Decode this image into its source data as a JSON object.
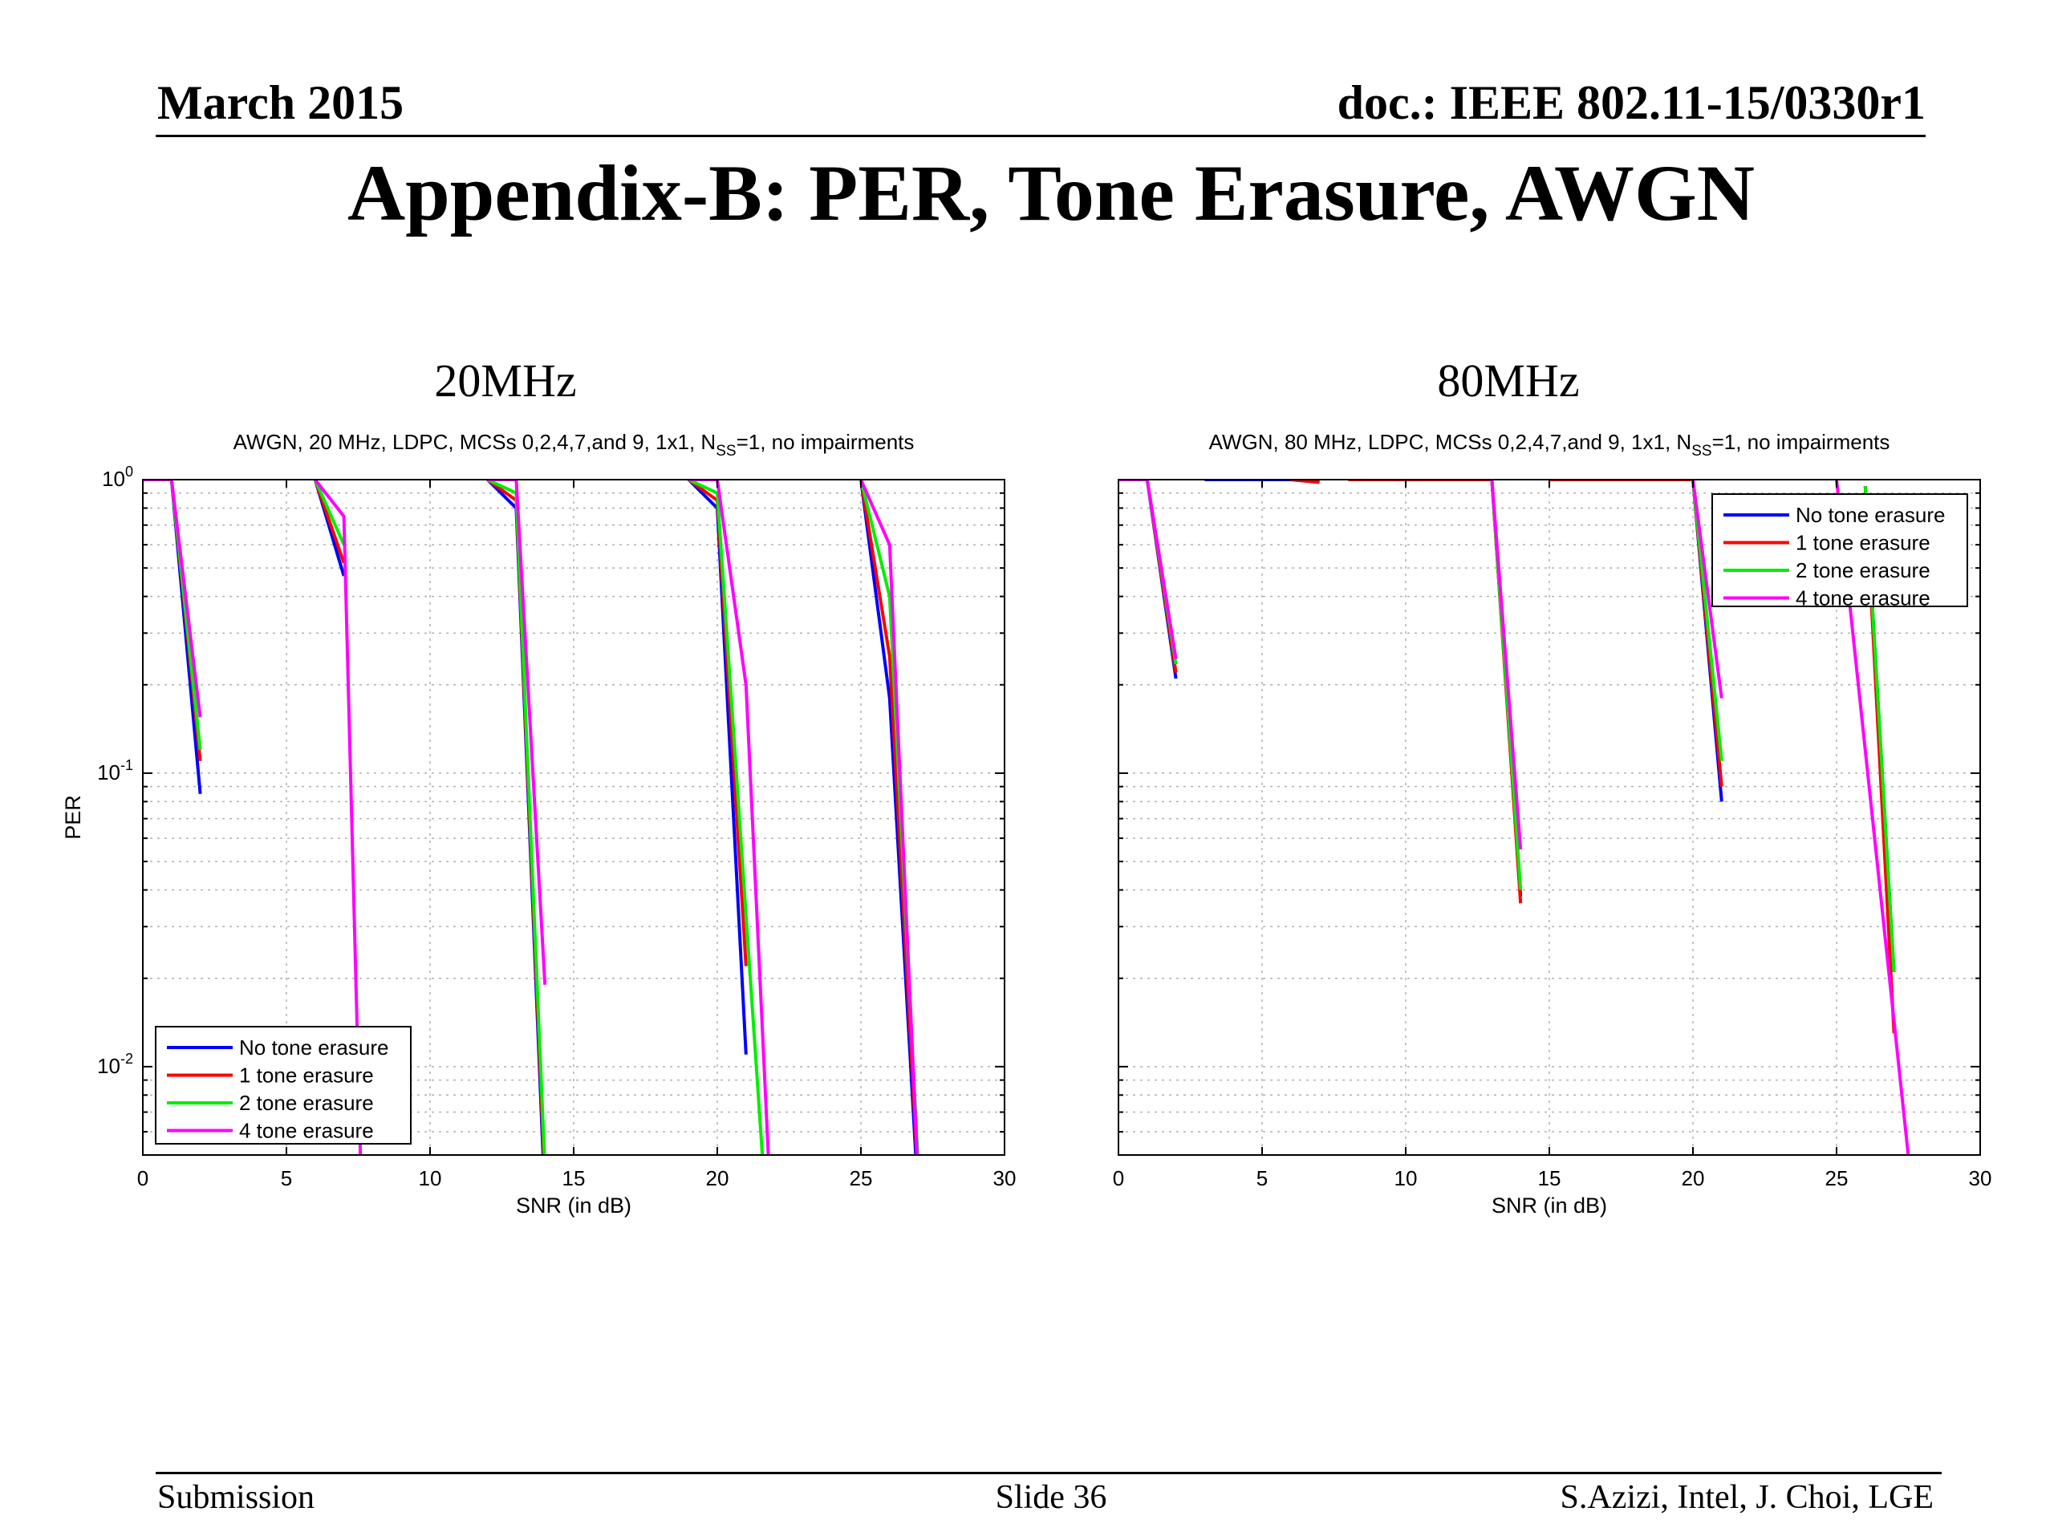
{
  "header": {
    "date": "March 2015",
    "doc": "doc.: IEEE 802.11-15/0330r1",
    "title": "Appendix-B: PER, Tone Erasure, AWGN"
  },
  "footer": {
    "left": "Submission",
    "middle": "Slide 36",
    "right": "S.Azizi, Intel, J. Choi, LGE"
  },
  "panels": [
    {
      "caption": "20MHz"
    },
    {
      "caption": "80MHz"
    }
  ],
  "series_colors": {
    "No tone erasure": "#0000ff",
    "1 tone erasure": "#ff0000",
    "2 tone erasure": "#00ee00",
    "4 tone erasure": "#ff00ff"
  },
  "chart_data": [
    {
      "type": "line",
      "title": {
        "pre": "AWGN, 20 MHz, LDPC, MCSs 0,2,4,7,and 9, 1x1, N",
        "sub": "SS",
        "post": "=1, no impairments"
      },
      "xlabel": "SNR (in dB)",
      "ylabel": "PER",
      "xlim": [
        0,
        30
      ],
      "ylim": [
        0.005,
        1
      ],
      "yscale": "log",
      "xticks": [
        0,
        5,
        10,
        15,
        20,
        25,
        30
      ],
      "yticks": [
        {
          "value": 1,
          "base": "10",
          "exp": "0"
        },
        {
          "value": 0.1,
          "base": "10",
          "exp": "-1"
        },
        {
          "value": 0.01,
          "base": "10",
          "exp": "-2"
        }
      ],
      "grid": true,
      "legend_position": "bottom-left",
      "series": [
        {
          "name": "No tone erasure",
          "segments": [
            [
              [
                0,
                1
              ],
              [
                1,
                1
              ],
              [
                2,
                0.085
              ]
            ],
            [
              [
                6,
                1
              ],
              [
                7,
                0.47
              ]
            ],
            [
              [
                12,
                1
              ],
              [
                13,
                0.8
              ],
              [
                14,
                0.0035
              ]
            ],
            [
              [
                19,
                1
              ],
              [
                20,
                0.8
              ],
              [
                21,
                0.011
              ]
            ],
            [
              [
                25,
                1
              ],
              [
                26,
                0.18
              ],
              [
                27,
                0.0035
              ]
            ]
          ]
        },
        {
          "name": "1 tone erasure",
          "segments": [
            [
              [
                0,
                1
              ],
              [
                1,
                1
              ],
              [
                2,
                0.11
              ]
            ],
            [
              [
                6,
                1
              ],
              [
                7,
                0.52
              ]
            ],
            [
              [
                12,
                1
              ],
              [
                13,
                0.85
              ],
              [
                14,
                0.004
              ]
            ],
            [
              [
                19,
                1
              ],
              [
                20,
                0.85
              ],
              [
                21,
                0.022
              ]
            ],
            [
              [
                25,
                1
              ],
              [
                26,
                0.25
              ],
              [
                27,
                0.004
              ]
            ]
          ]
        },
        {
          "name": "2 tone erasure",
          "segments": [
            [
              [
                0,
                1
              ],
              [
                1,
                1
              ],
              [
                2,
                0.12
              ]
            ],
            [
              [
                6,
                1
              ],
              [
                7,
                0.6
              ]
            ],
            [
              [
                12,
                1
              ],
              [
                13,
                0.9
              ],
              [
                14,
                0.0045
              ]
            ],
            [
              [
                19,
                1
              ],
              [
                20,
                0.9
              ],
              [
                21.6,
                0.0045
              ]
            ],
            [
              [
                25,
                1
              ],
              [
                26,
                0.4
              ],
              [
                27,
                0.0045
              ]
            ]
          ]
        },
        {
          "name": "4 tone erasure",
          "segments": [
            [
              [
                0,
                1
              ],
              [
                1,
                1
              ],
              [
                2,
                0.155
              ]
            ],
            [
              [
                6,
                1
              ],
              [
                7,
                0.75
              ],
              [
                7.6,
                0.004
              ]
            ],
            [
              [
                12,
                1
              ],
              [
                13,
                1
              ],
              [
                14,
                0.019
              ]
            ],
            [
              [
                19,
                1
              ],
              [
                20,
                1
              ],
              [
                21,
                0.2
              ],
              [
                21.8,
                0.0045
              ]
            ],
            [
              [
                25,
                1
              ],
              [
                26,
                0.6
              ],
              [
                27,
                0.004
              ]
            ]
          ]
        }
      ]
    },
    {
      "type": "line",
      "title": {
        "pre": "AWGN, 80 MHz, LDPC, MCSs 0,2,4,7,and 9, 1x1, N",
        "sub": "SS",
        "post": "=1, no impairments"
      },
      "xlabel": "SNR (in dB)",
      "ylabel": "",
      "xlim": [
        0,
        30
      ],
      "ylim": [
        0.005,
        1
      ],
      "yscale": "log",
      "xticks": [
        0,
        5,
        10,
        15,
        20,
        25,
        30
      ],
      "yticks": [],
      "grid": true,
      "legend_position": "top-right",
      "series": [
        {
          "name": "No tone erasure",
          "segments": [
            [
              [
                0,
                1
              ],
              [
                1,
                1
              ],
              [
                2,
                0.21
              ]
            ],
            [
              [
                3,
                1
              ],
              [
                6,
                1
              ],
              [
                7,
                0.98
              ]
            ],
            [
              [
                8,
                1
              ],
              [
                13,
                1
              ],
              [
                14,
                0.038
              ]
            ],
            [
              [
                15,
                1
              ],
              [
                20,
                1
              ],
              [
                21,
                0.08
              ]
            ],
            [
              [
                26,
                0.95
              ],
              [
                27,
                0.021
              ]
            ]
          ]
        },
        {
          "name": "1 tone erasure",
          "segments": [
            [
              [
                0,
                1
              ],
              [
                1,
                1
              ],
              [
                2,
                0.22
              ]
            ],
            [
              [
                6,
                1
              ],
              [
                7,
                0.98
              ]
            ],
            [
              [
                8,
                1
              ],
              [
                13,
                1
              ],
              [
                14,
                0.036
              ]
            ],
            [
              [
                15,
                1
              ],
              [
                20,
                1
              ],
              [
                21,
                0.09
              ]
            ],
            [
              [
                26,
                0.95
              ],
              [
                27,
                0.013
              ]
            ]
          ]
        },
        {
          "name": "2 tone erasure",
          "segments": [
            [
              [
                0,
                1
              ],
              [
                1,
                1
              ],
              [
                2,
                0.235
              ]
            ],
            [
              [
                13,
                1
              ],
              [
                14,
                0.04
              ]
            ],
            [
              [
                20,
                1
              ],
              [
                21,
                0.11
              ]
            ],
            [
              [
                26,
                0.95
              ],
              [
                27,
                0.021
              ]
            ]
          ]
        },
        {
          "name": "4 tone erasure",
          "segments": [
            [
              [
                0,
                1
              ],
              [
                1,
                1
              ],
              [
                2,
                0.245
              ]
            ],
            [
              [
                13,
                1
              ],
              [
                14,
                0.055
              ]
            ],
            [
              [
                20,
                1
              ],
              [
                21,
                0.18
              ]
            ],
            [
              [
                25,
                1
              ],
              [
                27.6,
                0.004
              ]
            ]
          ]
        }
      ]
    }
  ]
}
